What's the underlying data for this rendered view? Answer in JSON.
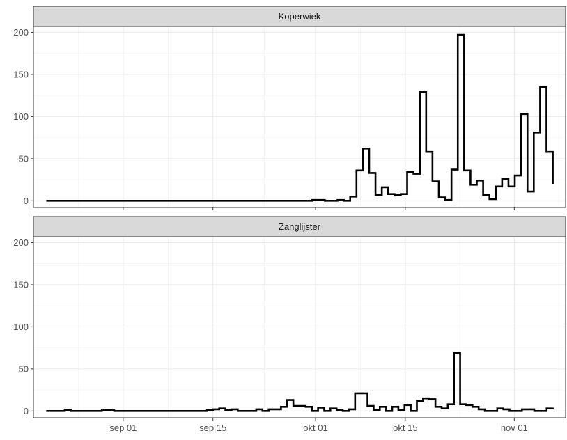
{
  "chart_data": {
    "type": "line",
    "title": "",
    "xlabel": "",
    "ylabel": "",
    "x_start": "2023-08-20",
    "x_end": "2023-11-07",
    "x_range": [
      "2023-08-18",
      "2023-11-09"
    ],
    "x_ticks": [
      {
        "date": "2023-09-01",
        "label": "sep 01"
      },
      {
        "date": "2023-09-15",
        "label": "sep 15"
      },
      {
        "date": "2023-10-01",
        "label": "okt 01"
      },
      {
        "date": "2023-10-15",
        "label": "okt 15"
      },
      {
        "date": "2023-11-01",
        "label": "nov 01"
      }
    ],
    "ylim": [
      -8,
      207
    ],
    "y_ticks": [
      0,
      50,
      100,
      150,
      200
    ],
    "y_tick_labels": [
      "0",
      "50",
      "100",
      "150",
      "200"
    ],
    "grid": true,
    "step": true,
    "facets": [
      {
        "name": "Koperwiek",
        "values": [
          0,
          0,
          0,
          0,
          0,
          0,
          0,
          0,
          0,
          0,
          0,
          0,
          0,
          0,
          0,
          0,
          0,
          0,
          0,
          0,
          0,
          0,
          0,
          0,
          0,
          0,
          0,
          0,
          0,
          0,
          0,
          0,
          0,
          0,
          0,
          0,
          0,
          0,
          0,
          0,
          0,
          0,
          1,
          1,
          0,
          0,
          1,
          0,
          5,
          36,
          62,
          33,
          7,
          16,
          8,
          7,
          8,
          34,
          32,
          129,
          58,
          23,
          4,
          1,
          37,
          197,
          36,
          19,
          24,
          7,
          2,
          17,
          26,
          17,
          30,
          103,
          11,
          81,
          135,
          58,
          20
        ]
      },
      {
        "name": "Zanglijster",
        "values": [
          0,
          0,
          0,
          1,
          0,
          0,
          0,
          0,
          0,
          1,
          1,
          0,
          0,
          0,
          0,
          0,
          0,
          0,
          0,
          0,
          0,
          0,
          0,
          0,
          0,
          0,
          1,
          2,
          3,
          1,
          2,
          0,
          0,
          0,
          2,
          0,
          2,
          2,
          5,
          13,
          6,
          6,
          5,
          0,
          4,
          0,
          3,
          1,
          0,
          2,
          21,
          21,
          6,
          1,
          5,
          0,
          5,
          1,
          7,
          0,
          12,
          15,
          14,
          5,
          3,
          8,
          69,
          8,
          7,
          5,
          2,
          0,
          0,
          3,
          2,
          0,
          0,
          2,
          2,
          0,
          0,
          3,
          4
        ]
      }
    ]
  }
}
